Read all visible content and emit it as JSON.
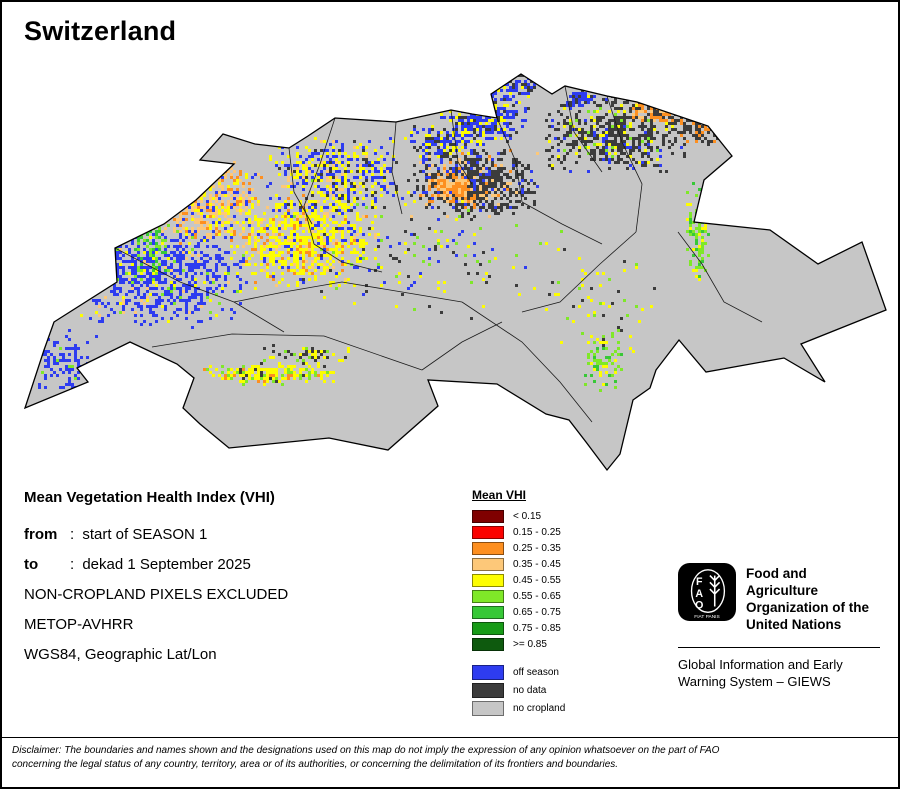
{
  "title": "Switzerland",
  "details": {
    "heading": "Mean Vegetation Health Index (VHI)",
    "rows": [
      {
        "label": "from",
        "value": "start of SEASON 1"
      },
      {
        "label": "to",
        "value": "dekad 1 September 2025"
      },
      {
        "label": "NON-CROPLAND PIXELS EXCLUDED",
        "value": ""
      },
      {
        "label": "METOP-AVHRR",
        "value": ""
      },
      {
        "label": "WGS84, Geographic Lat/Lon",
        "value": ""
      }
    ]
  },
  "legend": {
    "title": "Mean VHI",
    "classes": [
      {
        "label": "< 0.15",
        "color": "#7f0000"
      },
      {
        "label": "0.15 - 0.25",
        "color": "#fb0200"
      },
      {
        "label": "0.25 - 0.35",
        "color": "#fd8f20"
      },
      {
        "label": "0.35 - 0.45",
        "color": "#fdc879"
      },
      {
        "label": "0.45 - 0.55",
        "color": "#fdfd01"
      },
      {
        "label": "0.55 - 0.65",
        "color": "#7fe828"
      },
      {
        "label": "0.65 - 0.75",
        "color": "#37c837"
      },
      {
        "label": "0.75 - 0.85",
        "color": "#189b18"
      },
      {
        "label": ">= 0.85",
        "color": "#0e5a0e"
      }
    ],
    "extra": [
      {
        "label": "off season",
        "color": "#2e3cf0"
      },
      {
        "label": "no data",
        "color": "#3c3c3c"
      },
      {
        "label": "no cropland",
        "color": "#c6c6c6"
      }
    ]
  },
  "fao": {
    "org_name": "Food and Agriculture\nOrganization of the\nUnited Nations",
    "giews": "Global Information and Early\nWarning System – GIEWS",
    "logo_text": "FAO",
    "logo_motto": "FIAT PANIS"
  },
  "disclaimer": "Disclaimer: The boundaries and names shown and the designations used on this map do not imply the expression of any opinion whatsoever on the part of FAO\nconcerning the legal status of any country, territory, area or of its authorities, or concerning the delimitation of its frontiers and boundaries."
}
